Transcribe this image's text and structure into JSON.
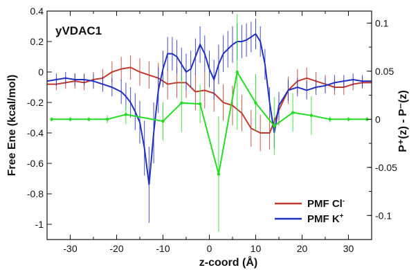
{
  "chart_data": {
    "type": "line",
    "title": "yVDAC1",
    "title_color": "#8a2be2",
    "xlabel": "z-coord (Å)",
    "ylabel_left": "Free Ene (kcal/mol)",
    "ylabel_right": "P⁺(z) - P⁻(z)",
    "xlim": [
      -35,
      35
    ],
    "ylim_left": [
      -1.1,
      0.4
    ],
    "ylim_right": [
      -0.125,
      0.1125
    ],
    "x_ticks": [
      -30,
      -20,
      -10,
      0,
      10,
      20,
      30
    ],
    "x_tick_labels": [
      "-30",
      "-20",
      "-10",
      "0",
      "10",
      "20",
      "30"
    ],
    "y_left_ticks": [
      0.4,
      0.2,
      0,
      -0.2,
      -0.4,
      -0.6,
      -0.8,
      -1
    ],
    "y_left_tick_labels": [
      "0.4",
      "0.2",
      "0",
      "-0.2",
      "-0.4",
      "-0.6",
      "-0.8",
      "-1"
    ],
    "y_right_ticks": [
      0.1,
      0.05,
      0,
      -0.05,
      -0.1
    ],
    "y_right_tick_labels": [
      "0.1",
      "0.05",
      "0",
      "-0.05",
      "-0.1"
    ],
    "grid": false,
    "legend_position": "bottom-right",
    "series": [
      {
        "name": "PMF Cl⁻",
        "legend_label": "PMF Cl",
        "legend_sup": "-",
        "axis": "left",
        "color": "#c0392b",
        "x": [
          -35,
          -33,
          -31,
          -29,
          -27,
          -25,
          -23,
          -21,
          -19,
          -17,
          -15,
          -13,
          -11,
          -9,
          -7,
          -5,
          -3,
          -1,
          1,
          3,
          5,
          7,
          9,
          11,
          13,
          15,
          17,
          19,
          21,
          23,
          25,
          27,
          29,
          31,
          33,
          35
        ],
        "y": [
          -0.08,
          -0.08,
          -0.07,
          -0.06,
          -0.07,
          -0.05,
          -0.04,
          0.0,
          0.02,
          0.03,
          0.0,
          -0.02,
          -0.04,
          -0.08,
          -0.07,
          -0.07,
          -0.13,
          -0.12,
          -0.14,
          -0.2,
          -0.22,
          -0.27,
          -0.37,
          -0.4,
          -0.4,
          -0.25,
          -0.12,
          -0.06,
          -0.04,
          -0.06,
          -0.08,
          -0.1,
          -0.1,
          -0.08,
          -0.07,
          -0.07
        ],
        "err": [
          0.04,
          0.04,
          0.04,
          0.05,
          0.05,
          0.05,
          0.06,
          0.07,
          0.08,
          0.08,
          0.09,
          0.09,
          0.1,
          0.1,
          0.1,
          0.1,
          0.12,
          0.12,
          0.12,
          0.12,
          0.13,
          0.12,
          0.12,
          0.12,
          0.11,
          0.1,
          0.09,
          0.08,
          0.07,
          0.06,
          0.06,
          0.05,
          0.05,
          0.04,
          0.04,
          0.04
        ]
      },
      {
        "name": "PMF K⁺",
        "legend_label": "PMF K",
        "legend_sup": "+",
        "axis": "left",
        "color": "#1f2fbf",
        "x": [
          -35,
          -33,
          -31,
          -29,
          -27,
          -25,
          -23,
          -21,
          -19,
          -18,
          -17,
          -16,
          -15,
          -14,
          -13,
          -12,
          -11,
          -10,
          -9,
          -8,
          -7,
          -6,
          -5,
          -4,
          -3,
          -2,
          -1,
          0,
          1,
          2,
          3,
          4,
          5,
          6,
          7,
          8,
          9,
          10,
          11,
          12,
          13,
          14,
          15,
          17,
          19,
          21,
          23,
          25,
          27,
          29,
          31,
          33,
          35
        ],
        "y": [
          -0.06,
          -0.05,
          -0.04,
          -0.05,
          -0.05,
          -0.06,
          -0.08,
          -0.1,
          -0.13,
          -0.16,
          -0.2,
          -0.26,
          -0.33,
          -0.5,
          -0.74,
          -0.4,
          -0.12,
          0.02,
          0.12,
          0.12,
          0.1,
          0.05,
          0.0,
          0.02,
          0.1,
          0.18,
          0.12,
          0.02,
          -0.05,
          0.05,
          0.12,
          0.15,
          0.18,
          0.2,
          0.2,
          0.21,
          0.23,
          0.25,
          0.2,
          0.05,
          -0.2,
          -0.4,
          -0.22,
          -0.12,
          -0.1,
          -0.12,
          -0.1,
          -0.09,
          -0.07,
          -0.06,
          -0.05,
          -0.06,
          -0.06
        ],
        "err": [
          0.04,
          0.04,
          0.04,
          0.04,
          0.04,
          0.05,
          0.05,
          0.06,
          0.08,
          0.09,
          0.1,
          0.12,
          0.14,
          0.18,
          0.25,
          0.2,
          0.15,
          0.12,
          0.11,
          0.11,
          0.11,
          0.11,
          0.12,
          0.12,
          0.12,
          0.12,
          0.12,
          0.12,
          0.13,
          0.13,
          0.12,
          0.12,
          0.12,
          0.12,
          0.11,
          0.11,
          0.1,
          0.1,
          0.1,
          0.1,
          0.1,
          0.1,
          0.09,
          0.07,
          0.06,
          0.06,
          0.05,
          0.05,
          0.05,
          0.04,
          0.04,
          0.04,
          0.04
        ]
      },
      {
        "name": "P⁺(z) - P⁻(z)",
        "axis": "right",
        "color": "#22dd22",
        "x": [
          -34,
          -30,
          -26,
          -22,
          -18,
          -10,
          -6,
          -2,
          2,
          6,
          10,
          14,
          18,
          22,
          26,
          30,
          34
        ],
        "y": [
          0,
          0,
          0,
          0,
          0.005,
          -0.002,
          0.017,
          0.016,
          -0.057,
          0.049,
          0.017,
          -0.007,
          0.007,
          0.004,
          0,
          0,
          0
        ],
        "err": [
          0.002,
          0.002,
          0.002,
          0.004,
          0.01,
          0.02,
          0.03,
          0.02,
          0.06,
          0.06,
          0.03,
          0.03,
          0.02,
          0.02,
          0.003,
          0.002,
          0.002
        ]
      }
    ]
  }
}
